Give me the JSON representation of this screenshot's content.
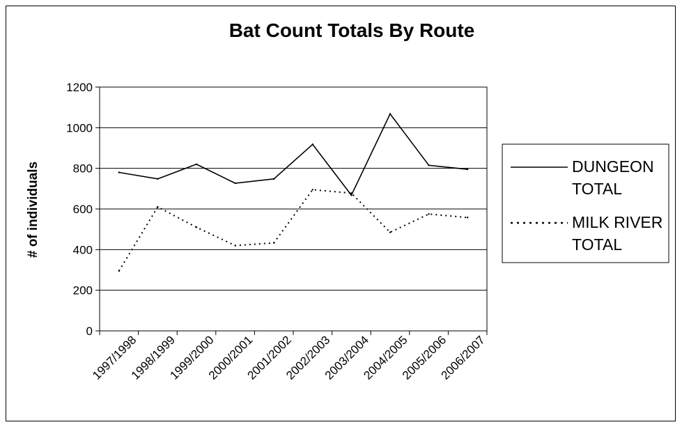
{
  "chart_data": {
    "type": "line",
    "title": "Bat Count Totals By Route",
    "xlabel": "",
    "ylabel": "# of individuals",
    "ylim": [
      0,
      1200
    ],
    "yticks": [
      0,
      200,
      400,
      600,
      800,
      1000,
      1200
    ],
    "grid": true,
    "legend_position": "right",
    "categories": [
      "1997/1998",
      "1998/1999",
      "1999/2000",
      "2000/2001",
      "2001/2002",
      "2002/2003",
      "2003/2004",
      "2004/2005",
      "2005/2006",
      "2006/2007"
    ],
    "series": [
      {
        "name": "DUNGEON TOTAL",
        "legend_lines": [
          "DUNGEON",
          "TOTAL"
        ],
        "line_style": "solid",
        "color": "#000000",
        "values": [
          780,
          748,
          820,
          727,
          748,
          918,
          668,
          1068,
          815,
          795
        ]
      },
      {
        "name": "MILK RIVER TOTAL",
        "legend_lines": [
          "MILK RIVER",
          "TOTAL"
        ],
        "line_style": "dotted",
        "color": "#000000",
        "values": [
          295,
          610,
          510,
          420,
          433,
          695,
          678,
          485,
          575,
          558
        ]
      }
    ]
  }
}
